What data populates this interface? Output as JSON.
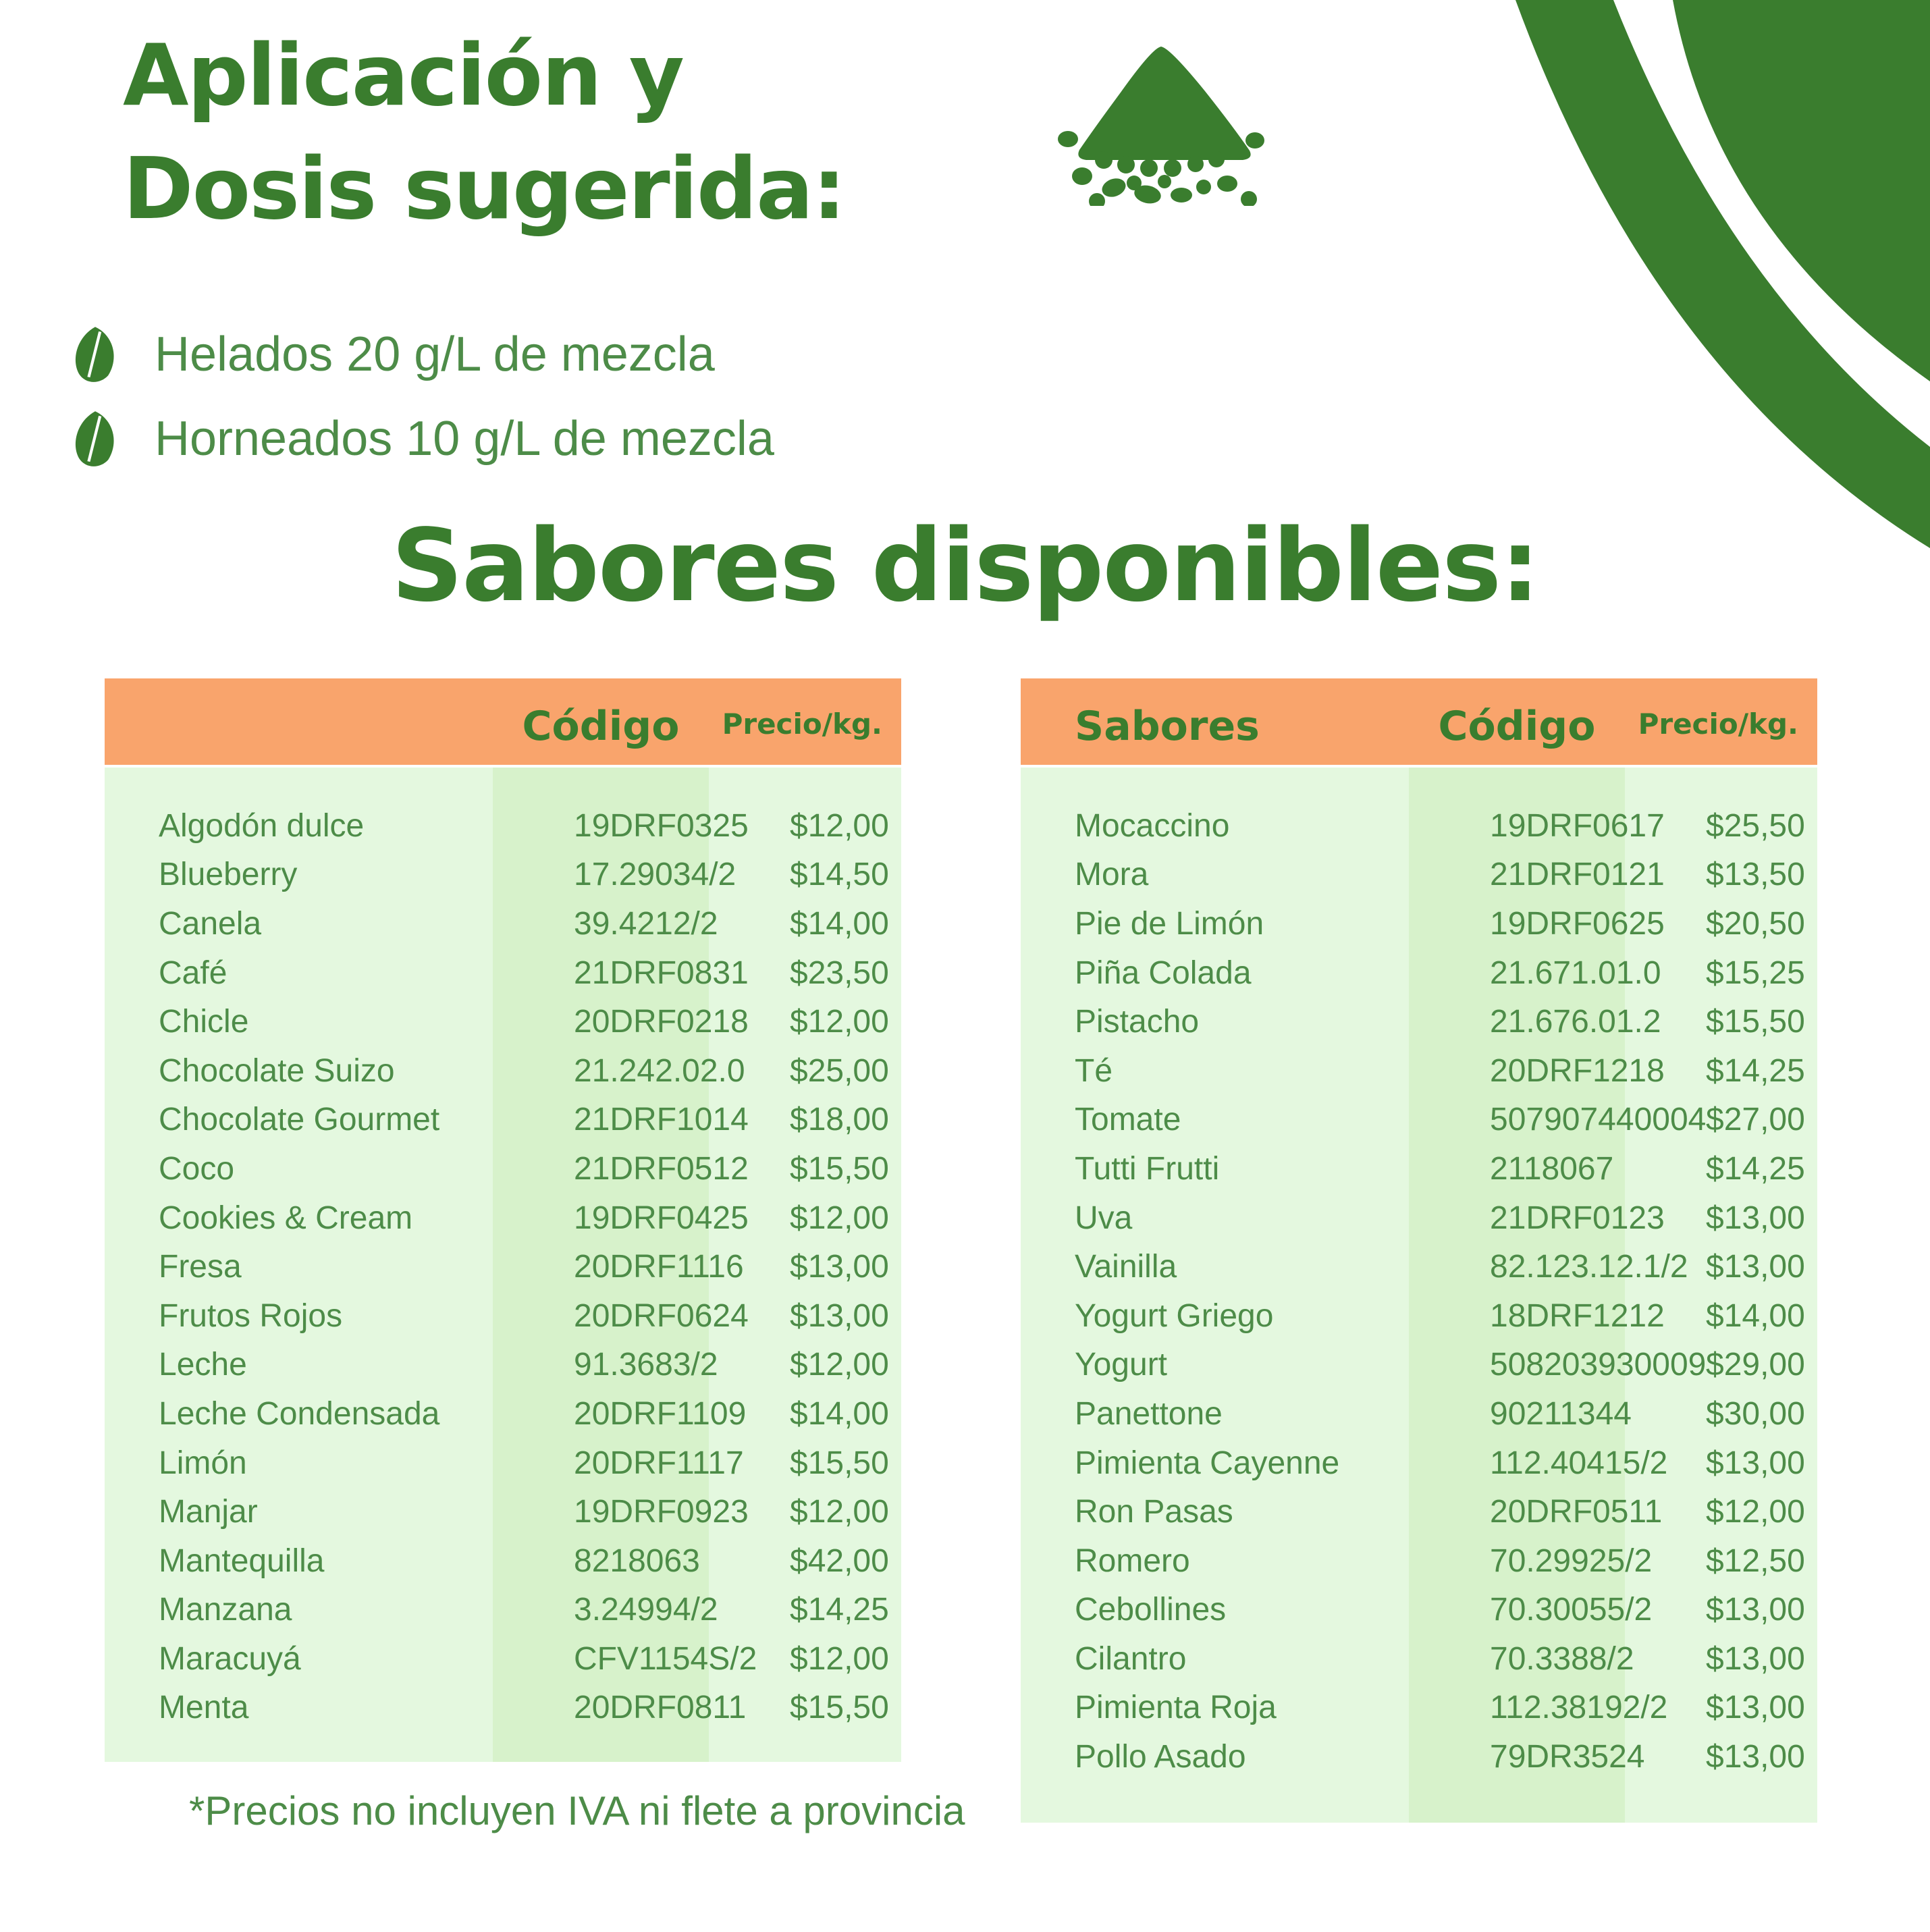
{
  "header": {
    "title_line1": "Aplicación y",
    "title_line2": "Dosis sugerida:",
    "bullets": [
      "Helados 20 g/L de mezcla",
      "Horneados 10 g/L de mezcla"
    ]
  },
  "section": {
    "heading": "Sabores disponibles:"
  },
  "footnote": "*Precios no incluyen IVA ni flete a provincia",
  "icons": {
    "powder": "powder-pile-icon",
    "bullet": "leaf-bullet-icon",
    "corner": "corner-swoosh-decoration"
  },
  "colors": {
    "dark_green": "#3a7d2e",
    "row_green": "#4d8c48",
    "header_orange": "#f9a46c",
    "table_bg_green": "#e4f8df",
    "code_band_green": "#d7f2cb",
    "background": "#ffffff"
  },
  "tables": [
    {
      "name": "left",
      "headers": {
        "sabores": "",
        "codigo": "Código",
        "precio": "Precio/kg."
      },
      "columns": [
        "flavor",
        "code",
        "price_per_kg"
      ],
      "rows": [
        [
          "Algodón dulce",
          "19DRF0325",
          "$12,00"
        ],
        [
          "Blueberry",
          "17.29034/2",
          "$14,50"
        ],
        [
          "Canela",
          "39.4212/2",
          "$14,00"
        ],
        [
          "Café",
          "21DRF0831",
          "$23,50"
        ],
        [
          "Chicle",
          "20DRF0218",
          "$12,00"
        ],
        [
          "Chocolate Suizo",
          "21.242.02.0",
          "$25,00"
        ],
        [
          "Chocolate Gourmet",
          "21DRF1014",
          "$18,00"
        ],
        [
          "Coco",
          "21DRF0512",
          "$15,50"
        ],
        [
          "Cookies & Cream",
          "19DRF0425",
          "$12,00"
        ],
        [
          "Fresa",
          "20DRF1116",
          "$13,00"
        ],
        [
          "Frutos Rojos",
          "20DRF0624",
          "$13,00"
        ],
        [
          "Leche",
          "91.3683/2",
          "$12,00"
        ],
        [
          "Leche Condensada",
          "20DRF1109",
          "$14,00"
        ],
        [
          "Limón",
          "20DRF1117",
          "$15,50"
        ],
        [
          "Manjar",
          "19DRF0923",
          "$12,00"
        ],
        [
          "Mantequilla",
          "8218063",
          "$42,00"
        ],
        [
          "Manzana",
          "3.24994/2",
          "$14,25"
        ],
        [
          "Maracuyá",
          "CFV1154S/2",
          "$12,00"
        ],
        [
          "Menta",
          "20DRF0811",
          "$15,50"
        ]
      ]
    },
    {
      "name": "right",
      "headers": {
        "sabores": "Sabores",
        "codigo": "Código",
        "precio": "Precio/kg."
      },
      "columns": [
        "flavor",
        "code",
        "price_per_kg"
      ],
      "rows": [
        [
          "Mocaccino",
          "19DRF0617",
          "$25,50"
        ],
        [
          "Mora",
          "21DRF0121",
          "$13,50"
        ],
        [
          "Pie de Limón",
          "19DRF0625",
          "$20,50"
        ],
        [
          "Piña Colada",
          "21.671.01.0",
          "$15,25"
        ],
        [
          "Pistacho",
          "21.676.01.2",
          "$15,50"
        ],
        [
          "Té",
          "20DRF1218",
          "$14,25"
        ],
        [
          "Tomate",
          "507907440004",
          "$27,00"
        ],
        [
          "Tutti Frutti",
          "2118067",
          "$14,25"
        ],
        [
          "Uva",
          "21DRF0123",
          "$13,00"
        ],
        [
          "Vainilla",
          "82.123.12.1/2",
          "$13,00"
        ],
        [
          "Yogurt Griego",
          "18DRF1212",
          "$14,00"
        ],
        [
          "Yogurt",
          "508203930009",
          "$29,00"
        ],
        [
          "Panettone",
          "90211344",
          "$30,00"
        ],
        [
          "Pimienta Cayenne",
          "112.40415/2",
          "$13,00"
        ],
        [
          "Ron Pasas",
          "20DRF0511",
          "$12,00"
        ],
        [
          "Romero",
          "70.29925/2",
          "$12,50"
        ],
        [
          "Cebollines",
          "70.30055/2",
          "$13,00"
        ],
        [
          "Cilantro",
          "70.3388/2",
          "$13,00"
        ],
        [
          "Pimienta Roja",
          "112.38192/2",
          "$13,00"
        ],
        [
          "Pollo Asado",
          "79DR3524",
          "$13,00"
        ]
      ]
    }
  ]
}
